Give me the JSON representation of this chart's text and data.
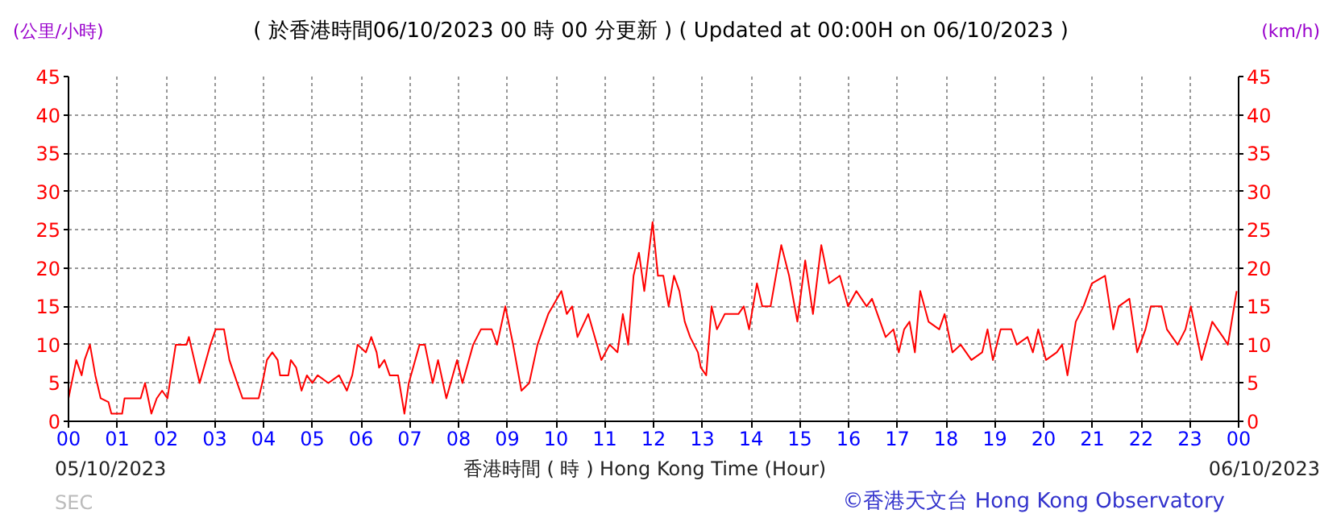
{
  "chart_data": {
    "type": "line",
    "title": "( 於香港時間06/10/2023 00 時 00 分更新 ) ( Updated at 00:00H on 06/10/2023 )",
    "xlabel": "香港時間 ( 時 ) Hong Kong Time (Hour)",
    "ylabel": "(公里/小時)",
    "y2label": "(km/h)",
    "annotations": [
      "05/10/2023",
      "06/10/2023",
      "©香港天文台 Hong Kong Observatory",
      "SEC"
    ],
    "xlim": [
      0,
      24
    ],
    "xticks": [
      {
        "value": 0,
        "label": "00"
      },
      {
        "value": 1,
        "label": "01"
      },
      {
        "value": 2,
        "label": "02"
      },
      {
        "value": 3,
        "label": "03"
      },
      {
        "value": 4,
        "label": "04"
      },
      {
        "value": 5,
        "label": "05"
      },
      {
        "value": 6,
        "label": "06"
      },
      {
        "value": 7,
        "label": "07"
      },
      {
        "value": 8,
        "label": "08"
      },
      {
        "value": 9,
        "label": "09"
      },
      {
        "value": 10,
        "label": "10"
      },
      {
        "value": 11,
        "label": "11"
      },
      {
        "value": 12,
        "label": "12"
      },
      {
        "value": 13,
        "label": "13"
      },
      {
        "value": 14,
        "label": "14"
      },
      {
        "value": 15,
        "label": "15"
      },
      {
        "value": 16,
        "label": "16"
      },
      {
        "value": 17,
        "label": "17"
      },
      {
        "value": 18,
        "label": "18"
      },
      {
        "value": 19,
        "label": "19"
      },
      {
        "value": 20,
        "label": "20"
      },
      {
        "value": 21,
        "label": "21"
      },
      {
        "value": 22,
        "label": "22"
      },
      {
        "value": 23,
        "label": "23"
      },
      {
        "value": 24,
        "label": "00"
      }
    ],
    "ylim": [
      0,
      45
    ],
    "yticks": [
      0,
      5,
      10,
      15,
      20,
      25,
      30,
      35,
      40,
      45
    ],
    "y2lim": [
      0,
      45
    ],
    "y2ticks": [
      0,
      5,
      10,
      15,
      20,
      25,
      30,
      35,
      40,
      45
    ],
    "grid": true,
    "series": [
      {
        "color": "#ff0000",
        "x": [
          0,
          0.16,
          0.27,
          0.33,
          0.44,
          0.55,
          0.66,
          0.82,
          0.88,
          1.1,
          1.15,
          1.48,
          1.57,
          1.7,
          1.81,
          1.92,
          2.03,
          2.2,
          2.42,
          2.47,
          2.69,
          2.91,
          3.02,
          3.19,
          3.3,
          3.46,
          3.57,
          3.9,
          4.01,
          4.07,
          4.18,
          4.29,
          4.34,
          4.51,
          4.56,
          4.67,
          4.78,
          4.89,
          5.0,
          5.11,
          5.33,
          5.55,
          5.71,
          5.82,
          5.93,
          6.1,
          6.21,
          6.32,
          6.37,
          6.48,
          6.59,
          6.76,
          6.89,
          6.98,
          7.2,
          7.31,
          7.47,
          7.58,
          7.75,
          7.97,
          8.08,
          8.3,
          8.46,
          8.68,
          8.79,
          8.96,
          9.12,
          9.29,
          9.45,
          9.62,
          9.84,
          10.11,
          10.22,
          10.33,
          10.44,
          10.66,
          10.93,
          11.1,
          11.26,
          11.37,
          11.48,
          11.59,
          11.7,
          11.81,
          11.98,
          12.09,
          12.2,
          12.31,
          12.42,
          12.53,
          12.64,
          12.75,
          12.91,
          12.97,
          13.08,
          13.19,
          13.3,
          13.46,
          13.74,
          13.85,
          13.96,
          14.12,
          14.23,
          14.4,
          14.62,
          14.78,
          14.95,
          15.11,
          15.27,
          15.44,
          15.6,
          15.82,
          15.99,
          16.16,
          16.37,
          16.48,
          16.76,
          16.92,
          17.03,
          17.14,
          17.25,
          17.36,
          17.47,
          17.64,
          17.86,
          17.97,
          18.13,
          18.3,
          18.52,
          18.74,
          18.85,
          18.96,
          19.12,
          19.34,
          19.45,
          19.67,
          19.78,
          19.89,
          20.05,
          20.27,
          20.38,
          20.49,
          20.66,
          20.82,
          20.99,
          21.26,
          21.43,
          21.54,
          21.76,
          21.92,
          22.09,
          22.2,
          22.42,
          22.53,
          22.75,
          22.91,
          23.02,
          23.24,
          23.46,
          23.68,
          23.78,
          23.96
        ],
        "values": [
          3,
          8,
          6,
          8,
          10,
          6,
          3,
          2.5,
          1,
          1,
          3,
          3,
          5,
          1,
          3,
          4,
          3,
          10,
          10,
          11,
          5,
          10,
          12,
          12,
          8,
          5,
          3,
          3,
          6,
          8,
          9,
          8,
          6,
          6,
          8,
          7,
          4,
          6,
          5,
          6,
          5,
          6,
          4,
          6,
          10,
          9,
          11,
          9,
          7,
          8,
          6,
          6,
          1,
          5,
          10,
          10,
          5,
          8,
          3,
          8,
          5,
          10,
          12,
          12,
          10,
          15,
          10,
          4,
          5,
          10,
          14,
          17,
          14,
          15,
          11,
          14,
          8,
          10,
          9,
          14,
          10,
          19,
          22,
          17,
          26,
          19,
          19,
          15,
          19,
          17,
          13,
          11,
          9,
          7,
          6,
          15,
          12,
          14,
          14,
          15,
          12,
          18,
          15,
          15,
          23,
          19,
          13,
          21,
          14,
          23,
          18,
          19,
          15,
          17,
          15,
          16,
          11,
          12,
          9,
          12,
          13,
          9,
          17,
          13,
          12,
          14,
          9,
          10,
          8,
          9,
          12,
          8,
          12,
          12,
          10,
          11,
          9,
          12,
          8,
          9,
          10,
          6,
          13,
          15,
          18,
          19,
          12,
          15,
          16,
          9,
          12,
          15,
          15,
          12,
          10,
          12,
          15,
          8,
          13,
          11,
          10,
          17
        ]
      }
    ]
  }
}
